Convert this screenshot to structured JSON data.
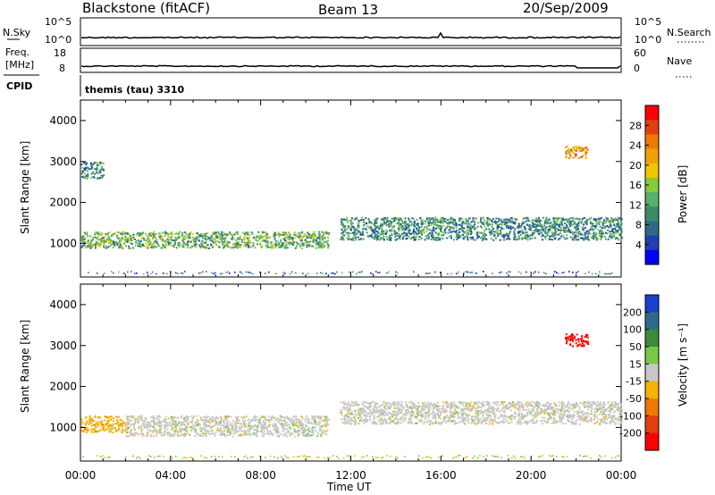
{
  "header": {
    "radar": "Blackstone (fitACF)",
    "beam": "Beam 13",
    "date": "20/Sep/2009"
  },
  "noise_panel": {
    "left_label": "N.Sky",
    "right_label": "N.Search",
    "left_ticks": [
      "10^5",
      "10^0"
    ],
    "right_ticks": [
      "10^5",
      "10^0"
    ]
  },
  "freq_panel": {
    "left_label_line1": "Freq.",
    "left_label_line2": "[MHz]",
    "right_label": "Nave",
    "left_ticks": [
      "18",
      "8"
    ],
    "right_ticks": [
      "60",
      "0"
    ]
  },
  "cpid_panel": {
    "label": "CPID",
    "text": "themis (tau) 3310"
  },
  "chart_data": [
    {
      "type": "heatmap",
      "name": "Power",
      "ylabel": "Slant Range [km]",
      "yticks": [
        "4000",
        "3000",
        "2000",
        "1000"
      ],
      "ylim": [
        180,
        4500
      ],
      "xlim_hours": [
        0,
        24
      ],
      "colorbar": {
        "label": "Power [dB]",
        "ticks": [
          "28",
          "24",
          "20",
          "16",
          "12",
          "8",
          "4"
        ],
        "range": [
          0,
          30
        ],
        "colors": [
          "#0000ff",
          "#1f3fb4",
          "#2e6b8a",
          "#3d8a6a",
          "#58b06a",
          "#86c93c",
          "#f2c500",
          "#f0a000",
          "#f07800",
          "#e04010",
          "#ff0000"
        ]
      },
      "regions": [
        {
          "t0": 0.0,
          "t1": 11.0,
          "r0": 900,
          "r1": 1300,
          "power": 12
        },
        {
          "t0": 11.5,
          "t1": 24.0,
          "r0": 1100,
          "r1": 1650,
          "power": 10
        },
        {
          "t0": 0.0,
          "t1": 1.0,
          "r0": 2600,
          "r1": 3000,
          "power": 8
        },
        {
          "t0": 21.5,
          "t1": 22.5,
          "r0": 3100,
          "r1": 3400,
          "power": 20
        }
      ]
    },
    {
      "type": "heatmap",
      "name": "Velocity",
      "ylabel": "Slant Range [km]",
      "yticks": [
        "4000",
        "3000",
        "2000",
        "1000"
      ],
      "ylim": [
        180,
        4500
      ],
      "xlim_hours": [
        0,
        24
      ],
      "colorbar": {
        "label": "Velocity [m s⁻¹]",
        "ticks": [
          "200",
          "100",
          "50",
          "15",
          "-15",
          "-50",
          "-100",
          "-200"
        ],
        "colors": [
          "#1a3fd0",
          "#2e6b8a",
          "#3d8a3a",
          "#7ac943",
          "#c8c8c8",
          "#f2b400",
          "#f07800",
          "#e04010",
          "#ff0000"
        ]
      },
      "regions": [
        {
          "t0": 0.0,
          "t1": 2.0,
          "r0": 900,
          "r1": 1300,
          "velocity": -40
        },
        {
          "t0": 2.0,
          "t1": 11.0,
          "r0": 800,
          "r1": 1300,
          "velocity": 0
        },
        {
          "t0": 11.5,
          "t1": 24.0,
          "r0": 1100,
          "r1": 1650,
          "velocity": 0
        },
        {
          "t0": 21.5,
          "t1": 22.5,
          "r0": 3000,
          "r1": 3300,
          "velocity": -200
        }
      ]
    }
  ],
  "x_axis": {
    "ticks": [
      "00:00",
      "04:00",
      "08:00",
      "12:00",
      "16:00",
      "20:00",
      "00:00"
    ],
    "label": "Time UT"
  }
}
